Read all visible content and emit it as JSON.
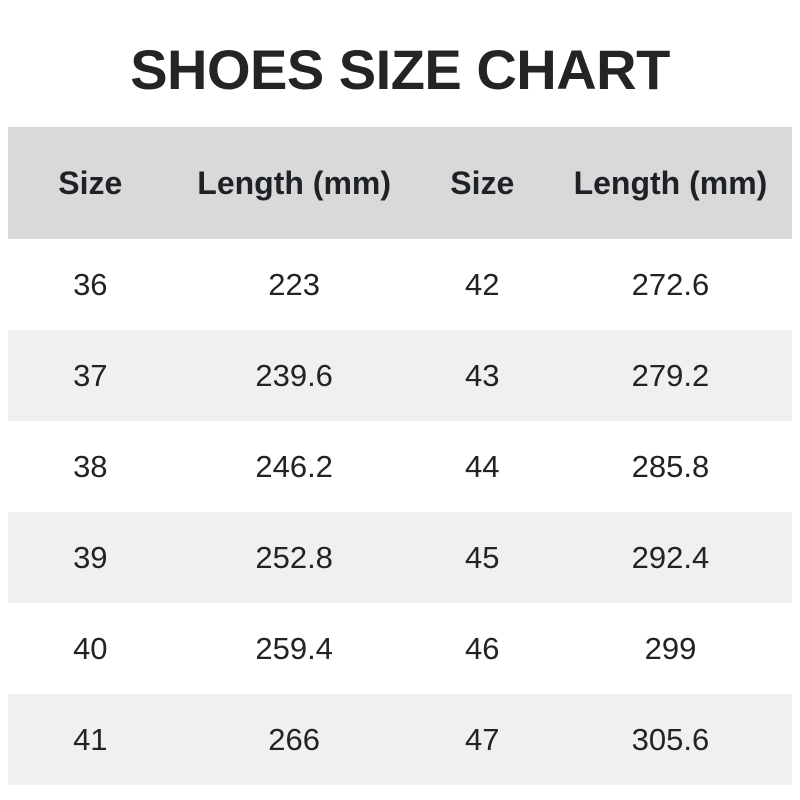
{
  "page": {
    "title": "SHOES SIZE CHART"
  },
  "colors": {
    "header_bg": "#d9d9d9",
    "alt_row_bg": "#f0f0f0",
    "text": "#212327",
    "title_text": "#242424",
    "background": "#ffffff"
  },
  "chart_data": {
    "type": "table",
    "title": "SHOES SIZE CHART",
    "columns": [
      "Size",
      "Length (mm)",
      "Size",
      "Length (mm)"
    ],
    "rows": [
      [
        36,
        223,
        42,
        272.6
      ],
      [
        37,
        239.6,
        43,
        279.2
      ],
      [
        38,
        246.2,
        44,
        285.8
      ],
      [
        39,
        252.8,
        45,
        292.4
      ],
      [
        40,
        259.4,
        46,
        299
      ],
      [
        41,
        266,
        47,
        305.6
      ]
    ],
    "layout_hints": {
      "alternating_rows": true,
      "first_data_row_background": "white",
      "header_background": "gray",
      "grid": false
    }
  }
}
